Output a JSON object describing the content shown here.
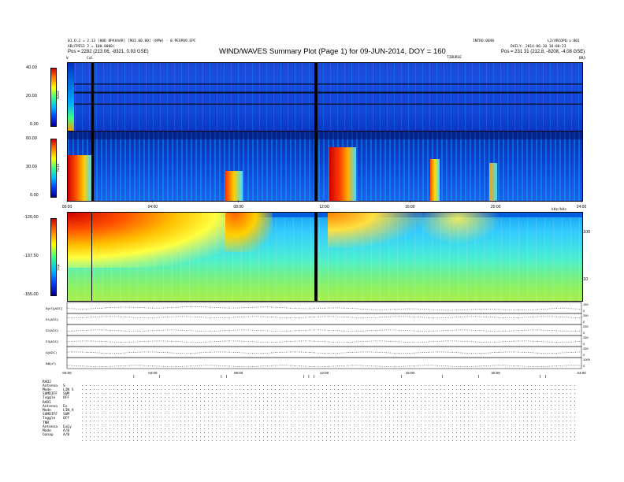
{
  "header": {
    "title": "WIND/WAVES Summary Plot (Page 1) for 09-JUN-2014, DOY = 160",
    "left_line1": "01.D.2 = 2.13 [00D 8PAV4AR] [ROI.00.00] (RPW) - 0.PEOPQ9.EPC",
    "left_line2": "AB(FPES3 2 = 100.0000)",
    "left_pos": "Pos =   2282 (213.06, -8321, 0.93 GSE)",
    "right_line0": "INTRO:0040",
    "right_line0b": "L2/ARCOPO:x:001",
    "right_line1": "DAILY: 2014-06-10 10:00:23",
    "right_pos": "Pos =  231 31 (212.8, -8208, -4.08 GSE)",
    "marker_v": "V",
    "marker_cal": "Cal",
    "time_label_top": "TIBURSE",
    "right_top": "BR3"
  },
  "chart_data": [
    {
      "type": "heatmap",
      "name": "RAD2",
      "colorbar_ticks": [
        "40.00",
        "20.00",
        "0.00"
      ],
      "colors": [
        "#00008f",
        "#0040ff",
        "#00c0ff",
        "#40ff80",
        "#ffff00",
        "#ff8000",
        "#d00000"
      ]
    },
    {
      "type": "heatmap",
      "name": "RAD1",
      "colorbar_ticks": [
        "60.00",
        "30.00",
        "0.00"
      ],
      "x_ticks": [
        "00:00",
        "04:00",
        "08:00",
        "12:00",
        "16:00",
        "20:00",
        "24:00"
      ],
      "x_range": [
        0,
        24
      ]
    },
    {
      "type": "heatmap",
      "name": "TNR",
      "colorbar_ticks": [
        "-120.00",
        "-137.50",
        "-155.00"
      ],
      "right_ticks": [
        "100",
        "10"
      ],
      "right_label": "kHz/kHz"
    },
    {
      "type": "line",
      "x_ticks": [
        "00:00",
        "04:00",
        "08:00",
        "12:00",
        "16:00",
        "20:00",
        "24:00"
      ],
      "x_range": [
        0,
        24
      ],
      "panels": [
        {
          "label": "B(nT)(ADC)",
          "ticks": [
            "150",
            "0"
          ]
        },
        {
          "label": "E1(ADC)",
          "ticks": [
            "250",
            "0"
          ]
        },
        {
          "label": "E2(ADC)",
          "ticks": [
            "250",
            "0"
          ]
        },
        {
          "label": "E3(ADC)",
          "ticks": [
            "250",
            "0"
          ]
        },
        {
          "label": "A(ADC)",
          "ticks": [
            "250",
            "0"
          ]
        },
        {
          "label": "BB(nT)",
          "ticks": [
            "1000",
            "0"
          ]
        }
      ]
    }
  ],
  "params": {
    "rad2_label": "RAD2",
    "rad2_rows": [
      {
        "k": "Antenna",
        "v": "S"
      },
      {
        "k": "Mode",
        "v": "LIN S"
      },
      {
        "k": "SUMDIFF",
        "v": "SUM"
      },
      {
        "k": "Toggle",
        "v": "OFF"
      }
    ],
    "rad1_label": "RAD1",
    "rad1_rows": [
      {
        "k": "Antenna",
        "v": "Ex"
      },
      {
        "k": "Mode",
        "v": "LIN_A"
      },
      {
        "k": "SUMDIFF",
        "v": "SUM"
      },
      {
        "k": "Toggle",
        "v": "OFF"
      }
    ],
    "tnr_label": "TNR",
    "tnr_rows": [
      {
        "k": "Antenna",
        "v": "ExEy"
      },
      {
        "k": "Mode",
        "v": "A/B"
      },
      {
        "k": "Ganap",
        "v": "A/B"
      }
    ]
  }
}
